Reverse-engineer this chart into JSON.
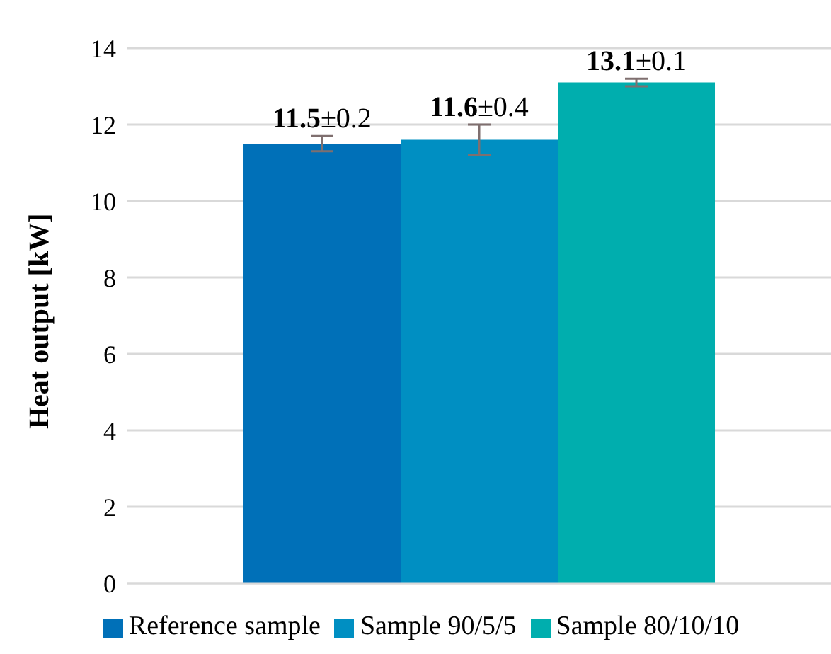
{
  "chart_data": {
    "type": "bar",
    "ylabel": "Heat output [kW]",
    "categories": [
      null
    ],
    "series": [
      {
        "name": "Reference sample",
        "color": "#0070b8",
        "values": [
          11.5
        ],
        "errors": [
          0.2
        ],
        "value_labels": [
          "11.5±0.2"
        ]
      },
      {
        "name": "Sample 90/5/5",
        "color": "#008fc2",
        "values": [
          11.6
        ],
        "errors": [
          0.4
        ],
        "value_labels": [
          "11.6±0.4"
        ]
      },
      {
        "name": "Sample 80/10/10",
        "color": "#00aeae",
        "values": [
          13.1
        ],
        "errors": [
          0.1
        ],
        "value_labels": [
          "13.1±0.1"
        ]
      }
    ],
    "ylim": [
      0,
      14
    ],
    "yticks": [
      0,
      2,
      4,
      6,
      8,
      10,
      12,
      14
    ],
    "grid": "y",
    "legend": "bottom",
    "tick_labels": "y"
  }
}
